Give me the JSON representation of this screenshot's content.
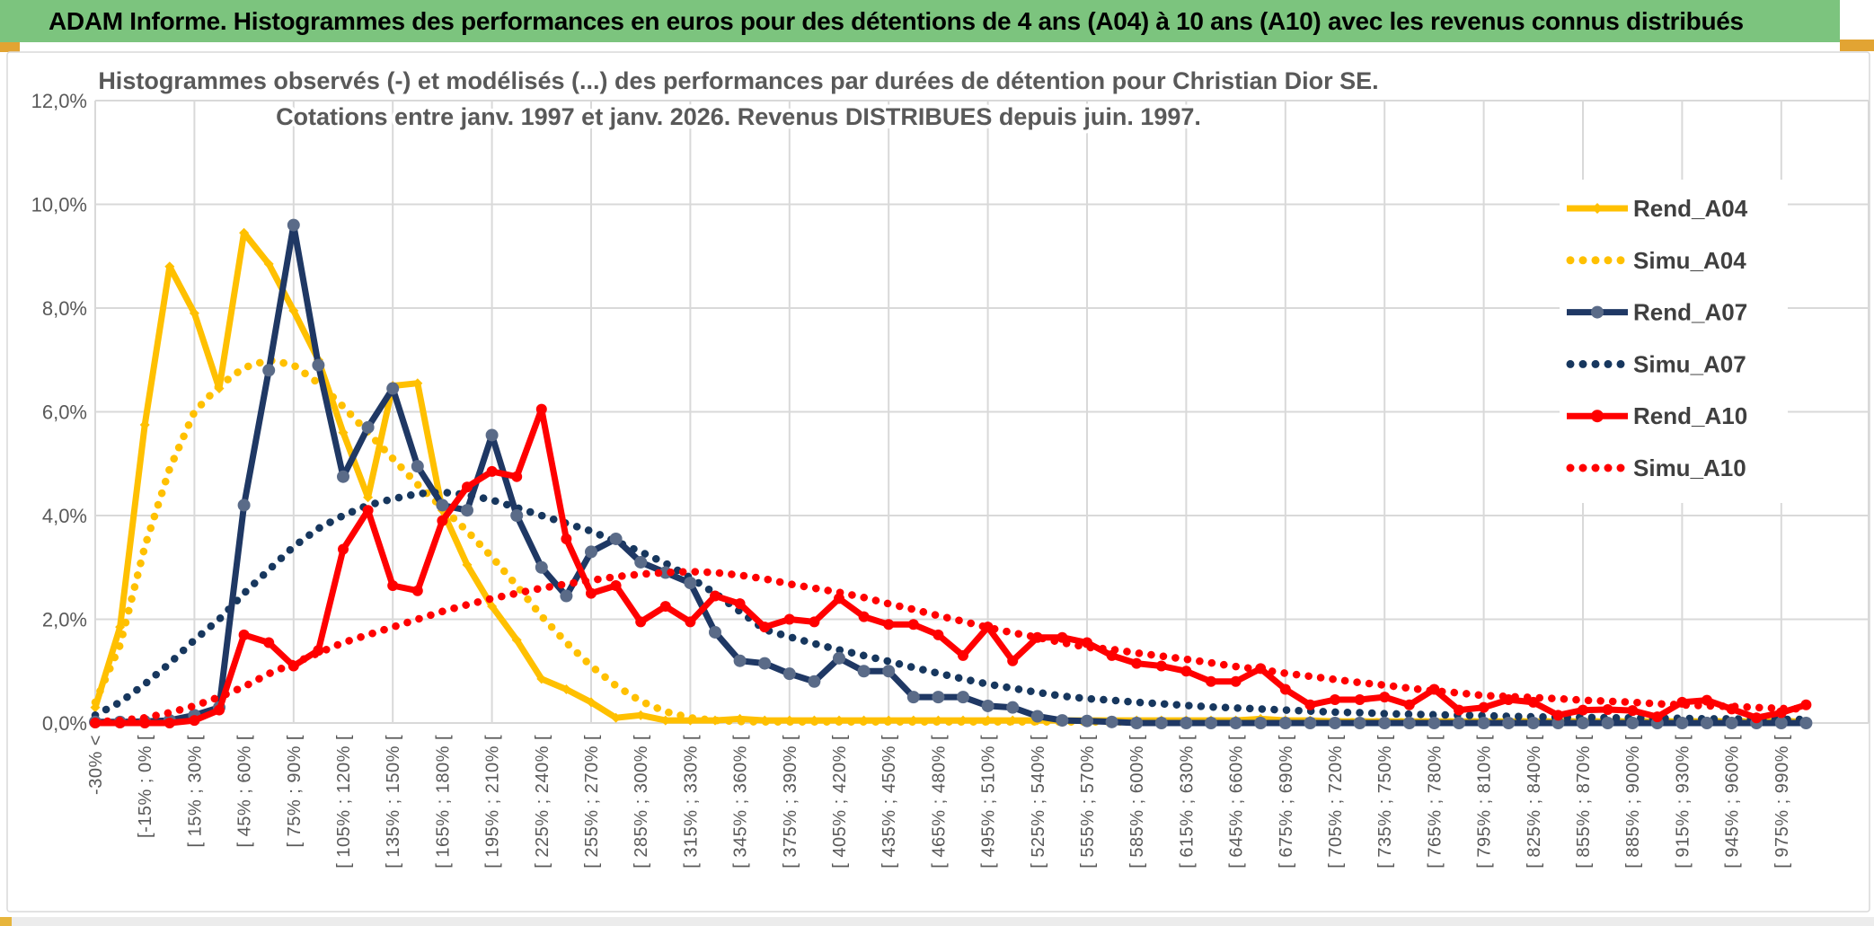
{
  "titlebar": {
    "text": "ADAM Informe. Histogrammes des performances en euros pour des détentions de 4 ans (A04) à 10 ans (A10) avec les revenus connus distribués"
  },
  "chart": {
    "title_line1": "Histogrammes observés (-) et modélisés (...) des performances par durées de détention pour Christian Dior SE.",
    "title_line2": "Cotations entre janv. 1997 et janv. 2026. Revenus DISTRIBUES depuis juin. 1997.",
    "y_ticks": [
      "12,0%",
      "10,0%",
      "8,0%",
      "6,0%",
      "4,0%",
      "2,0%",
      "0,0%"
    ]
  },
  "colors": {
    "titlebar_green": "#7CC47E",
    "gold": "#FFC000",
    "navy": "#1F3864",
    "navy_marker": "#5A6B88",
    "red": "#FF0000",
    "grid": "#D9D9D9",
    "axis_text": "#595959",
    "legend_text": "#3F3F3F",
    "accent_gold": "#E2A433"
  },
  "chart_data": {
    "type": "line",
    "title": "Histogrammes observés (-) et modélisés (...) des performances par durées de détention pour Christian Dior SE.",
    "subtitle": "Cotations entre janv. 1997 et janv. 2026. Revenus DISTRIBUES depuis juin. 1997.",
    "xlabel": "",
    "ylabel": "",
    "ylim": [
      0,
      12
    ],
    "y_tick_step_pct": 2,
    "n_bins": 70,
    "label_every_n_bins": 2,
    "gridline_every_n_bins": 4,
    "legend_position": "right-inside",
    "x_axis_labels": [
      "-30% <",
      "[-15% ; 0% [",
      "[ 15% ; 30% [",
      "[ 45% ; 60% [",
      "[ 75% ; 90% [",
      "[ 105% ; 120% [",
      "[ 135% ; 150% [",
      "[ 165% ; 180% [",
      "[ 195% ; 210% [",
      "[ 225% ; 240% [",
      "[ 255% ; 270% [",
      "[ 285% ; 300% [",
      "[ 315% ; 330% [",
      "[ 345% ; 360% [",
      "[ 375% ; 390% [",
      "[ 405% ; 420% [",
      "[ 435% ; 450% [",
      "[ 465% ; 480% [",
      "[ 495% ; 510% [",
      "[ 525% ; 540% [",
      "[ 555% ; 570% [",
      "[ 585% ; 600% [",
      "[ 615% ; 630% [",
      "[ 645% ; 660% [",
      "[ 675% ; 690% [",
      "[ 705% ; 720% [",
      "[ 735% ; 750% [",
      "[ 765% ; 780% [",
      "[ 795% ; 810% [",
      "[ 825% ; 840% [",
      "[ 855% ; 870% [",
      "[ 885% ; 900% [",
      "[ 915% ; 930% [",
      "[ 945% ; 960% [",
      "[ 975% ; 990% ["
    ],
    "series": [
      {
        "name": "Rend_A04",
        "style": "solid",
        "marker": "diamond",
        "color": "#FFC000",
        "marker_color": "#FFC000",
        "values": [
          0.3,
          1.85,
          5.75,
          8.8,
          7.9,
          6.45,
          9.45,
          8.85,
          7.95,
          7.0,
          5.6,
          4.35,
          6.5,
          6.55,
          4.1,
          3.05,
          2.25,
          1.6,
          0.85,
          0.65,
          0.4,
          0.1,
          0.15,
          0.05,
          0.05,
          0.05,
          0.08,
          0.05,
          0.05,
          0.05,
          0.05,
          0.05,
          0.05,
          0.05,
          0.05,
          0.05,
          0.05,
          0.05,
          0.05,
          0.05,
          0.05,
          0.05,
          0.05,
          0.05,
          0.05,
          0.05,
          0.05,
          0.08,
          0.05,
          0.05,
          0.03,
          0.03,
          0.03,
          0.03,
          0.03,
          0.03,
          0.03,
          0.03,
          0.03,
          0.03,
          0.03,
          0.03,
          0.03,
          0.03,
          0.03,
          0.03,
          0.03,
          0.03,
          0.03,
          0.03
        ]
      },
      {
        "name": "Simu_A04",
        "style": "dotted",
        "marker": "none",
        "color": "#FFC000",
        "marker_color": "#FFC000",
        "values": [
          0.4,
          1.5,
          3.4,
          4.9,
          6.0,
          6.5,
          6.85,
          7.0,
          6.9,
          6.55,
          6.1,
          5.6,
          5.1,
          4.6,
          4.15,
          3.7,
          3.2,
          2.65,
          2.06,
          1.55,
          1.1,
          0.72,
          0.42,
          0.22,
          0.1,
          0.05,
          0.03,
          0.02,
          0.02,
          0.02,
          0.02,
          0.02,
          0.02,
          0.02,
          0.02,
          0.02,
          0.02,
          0.02,
          0.02,
          0.02,
          0.02,
          0.02,
          0.02,
          0.02,
          0.02,
          0.02,
          0.02,
          0.02,
          0.02,
          0.02,
          0.02,
          0.02,
          0.02,
          0.02,
          0.02,
          0.02,
          0.02,
          0.02,
          0.02,
          0.02,
          0.02,
          0.02,
          0.02,
          0.02,
          0.02,
          0.02,
          0.02,
          0.02,
          0.02,
          0.02
        ]
      },
      {
        "name": "Rend_A07",
        "style": "solid",
        "marker": "circle",
        "color": "#1F3864",
        "marker_color": "#5A6B88",
        "values": [
          0.02,
          0.02,
          0.03,
          0.05,
          0.15,
          0.3,
          4.2,
          6.8,
          9.6,
          6.9,
          4.75,
          5.7,
          6.45,
          4.95,
          4.2,
          4.1,
          5.55,
          4.0,
          3.0,
          2.45,
          3.3,
          3.55,
          3.1,
          2.9,
          2.7,
          1.75,
          1.2,
          1.15,
          0.95,
          0.8,
          1.25,
          1.0,
          1.0,
          0.5,
          0.5,
          0.5,
          0.33,
          0.3,
          0.13,
          0.05,
          0.04,
          0.02,
          0,
          0,
          0,
          0,
          0,
          0,
          0,
          0,
          0,
          0,
          0,
          0,
          0,
          0,
          0,
          0,
          0,
          0,
          0,
          0,
          0,
          0,
          0,
          0,
          0,
          0,
          0,
          0
        ]
      },
      {
        "name": "Simu_A07",
        "style": "dotted",
        "marker": "none",
        "color": "#17375E",
        "marker_color": "#17375E",
        "values": [
          0.15,
          0.4,
          0.75,
          1.15,
          1.6,
          2.0,
          2.5,
          2.95,
          3.4,
          3.75,
          4.0,
          4.2,
          4.32,
          4.42,
          4.45,
          4.4,
          4.3,
          4.15,
          4.0,
          3.85,
          3.7,
          3.5,
          3.3,
          3.08,
          2.8,
          2.5,
          2.15,
          1.8,
          1.66,
          1.53,
          1.41,
          1.3,
          1.19,
          1.07,
          0.96,
          0.85,
          0.75,
          0.67,
          0.59,
          0.52,
          0.47,
          0.44,
          0.4,
          0.37,
          0.34,
          0.31,
          0.29,
          0.27,
          0.25,
          0.23,
          0.21,
          0.2,
          0.18,
          0.17,
          0.16,
          0.15,
          0.14,
          0.13,
          0.12,
          0.11,
          0.11,
          0.1,
          0.1,
          0.09,
          0.09,
          0.08,
          0.08,
          0.07,
          0.07,
          0.07
        ]
      },
      {
        "name": "Rend_A10",
        "style": "solid",
        "marker": "circle",
        "color": "#FF0000",
        "marker_color": "#FF0000",
        "values": [
          0,
          0,
          0,
          0,
          0.05,
          0.25,
          1.7,
          1.55,
          1.1,
          1.4,
          3.35,
          4.1,
          2.65,
          2.55,
          3.9,
          4.55,
          4.85,
          4.75,
          6.05,
          3.55,
          2.5,
          2.65,
          1.95,
          2.25,
          1.95,
          2.45,
          2.3,
          1.85,
          2.0,
          1.95,
          2.4,
          2.05,
          1.9,
          1.9,
          1.7,
          1.3,
          1.85,
          1.2,
          1.65,
          1.65,
          1.55,
          1.3,
          1.15,
          1.1,
          1.0,
          0.8,
          0.8,
          1.05,
          0.65,
          0.35,
          0.45,
          0.45,
          0.5,
          0.35,
          0.65,
          0.25,
          0.3,
          0.45,
          0.4,
          0.15,
          0.25,
          0.26,
          0.24,
          0.12,
          0.4,
          0.44,
          0.27,
          0.1,
          0.2,
          0.35
        ]
      },
      {
        "name": "Simu_A10",
        "style": "dotted",
        "marker": "none",
        "color": "#FF0000",
        "marker_color": "#FF0000",
        "values": [
          0.02,
          0.05,
          0.1,
          0.2,
          0.33,
          0.5,
          0.7,
          0.95,
          1.15,
          1.35,
          1.55,
          1.7,
          1.85,
          2.0,
          2.15,
          2.28,
          2.4,
          2.5,
          2.6,
          2.68,
          2.75,
          2.82,
          2.87,
          2.9,
          2.92,
          2.9,
          2.85,
          2.78,
          2.68,
          2.6,
          2.52,
          2.42,
          2.3,
          2.19,
          2.07,
          1.96,
          1.84,
          1.74,
          1.65,
          1.55,
          1.46,
          1.42,
          1.35,
          1.29,
          1.23,
          1.16,
          1.09,
          1.03,
          0.96,
          0.9,
          0.84,
          0.78,
          0.73,
          0.67,
          0.62,
          0.58,
          0.53,
          0.51,
          0.49,
          0.47,
          0.44,
          0.42,
          0.4,
          0.37,
          0.35,
          0.33,
          0.32,
          0.3,
          0.28,
          0.27
        ]
      }
    ]
  }
}
